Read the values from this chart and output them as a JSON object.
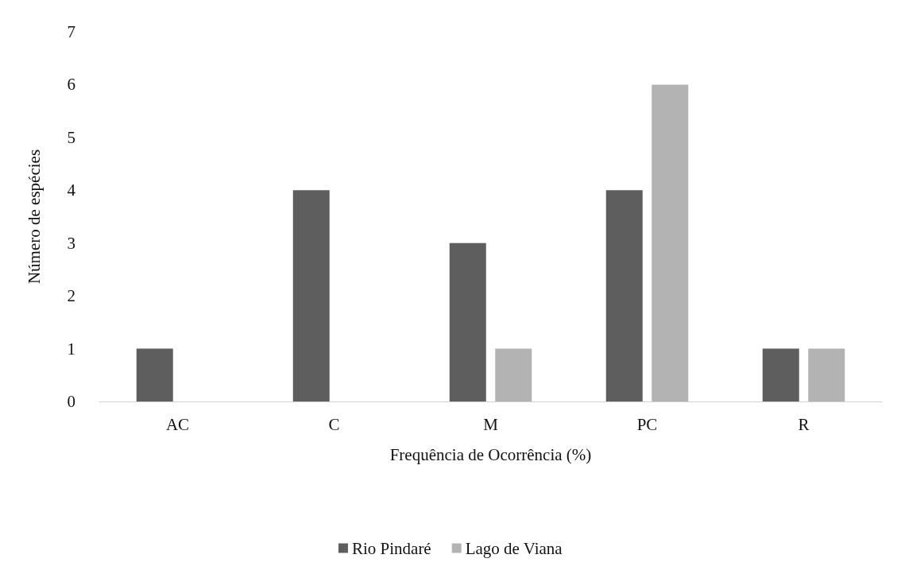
{
  "chart_data": {
    "type": "bar",
    "xlabel": "Frequência de Ocorrência (%)",
    "ylabel": "Número de espécies",
    "categories": [
      "AC",
      "C",
      "M",
      "PC",
      "R"
    ],
    "series": [
      {
        "name": "Rio Pindaré",
        "color": "#5e5e5e",
        "values": [
          1,
          4,
          3,
          4,
          1
        ]
      },
      {
        "name": "Lago de Viana",
        "color": "#b3b3b3",
        "values": [
          0,
          0,
          1,
          6,
          1
        ]
      }
    ],
    "ylim": [
      0,
      7
    ],
    "yticks": [
      0,
      1,
      2,
      3,
      4,
      5,
      6,
      7
    ],
    "grid": false,
    "legend": "bottom"
  }
}
